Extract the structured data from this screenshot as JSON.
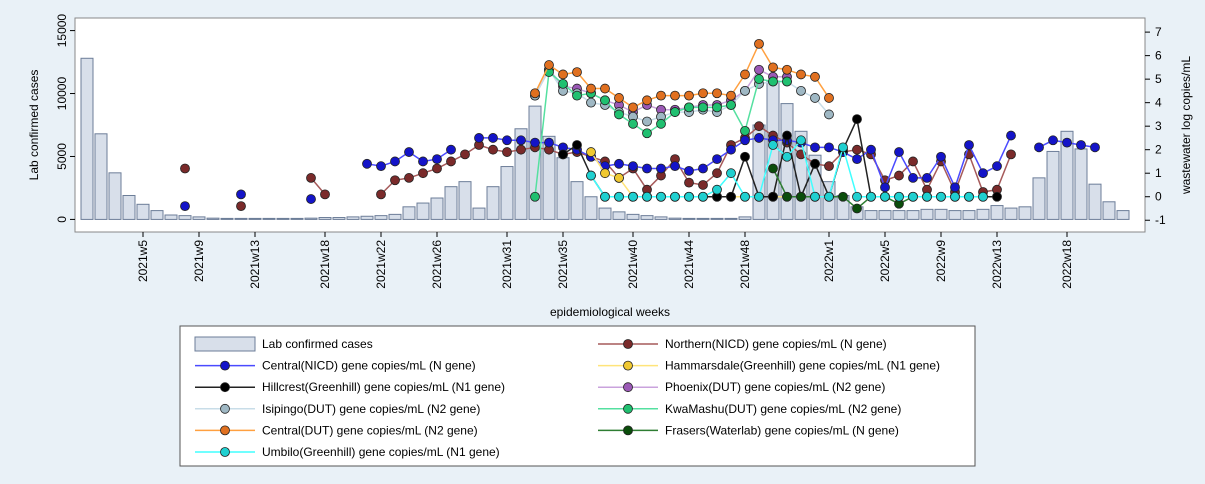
{
  "chart_data": {
    "type": "combo",
    "ylabel": "Lab confirmed cases",
    "y2label": "wastewater log copies/mL",
    "xlabel": "epidemiological weeks",
    "ylim": [
      -1000,
      16000
    ],
    "yticks": [
      0,
      5000,
      10000,
      15000
    ],
    "y2lim": [
      -1.5,
      7.6
    ],
    "y2ticks": [
      -1,
      0,
      1,
      2,
      3,
      4,
      5,
      6,
      7
    ],
    "categories": [
      null,
      null,
      null,
      null,
      "2021w5",
      null,
      null,
      null,
      "2021w9",
      null,
      null,
      null,
      "2021w13",
      null,
      null,
      null,
      null,
      "2021w18",
      null,
      null,
      null,
      "2021w22",
      null,
      null,
      null,
      "2021w26",
      null,
      null,
      null,
      null,
      "2021w31",
      null,
      null,
      null,
      "2021w35",
      null,
      null,
      null,
      null,
      "2021w40",
      null,
      null,
      null,
      "2021w44",
      null,
      null,
      null,
      "2021w48",
      null,
      null,
      null,
      null,
      null,
      "2022w1",
      null,
      null,
      null,
      "2022w5",
      null,
      null,
      null,
      "2022w9",
      null,
      null,
      null,
      "2022w13",
      null,
      null,
      null,
      null,
      "2022w18",
      null,
      null,
      null,
      null
    ],
    "series": [
      {
        "name": "Lab confirmed cases",
        "type": "bar",
        "color": "#d8dfea",
        "edge": "#6c7d98",
        "values": [
          12800,
          6800,
          3700,
          1900,
          1200,
          700,
          350,
          300,
          200,
          100,
          80,
          80,
          80,
          80,
          80,
          80,
          100,
          150,
          150,
          200,
          250,
          300,
          400,
          1000,
          1300,
          1700,
          2600,
          3000,
          900,
          2600,
          4200,
          7200,
          9000,
          6600,
          4900,
          3000,
          1800,
          900,
          600,
          400,
          300,
          200,
          100,
          80,
          80,
          80,
          80,
          200,
          7500,
          11000,
          9200,
          7000,
          5100,
          3000,
          1900,
          1000,
          700,
          700,
          700,
          700,
          800,
          800,
          700,
          700,
          800,
          1100,
          900,
          1000,
          3300,
          5400,
          7000,
          5600,
          2800,
          1400,
          700
        ]
      },
      {
        "name": "Northern(NICD) gene copies/mL (N gene)",
        "type": "line",
        "axis": "y2",
        "color": "#a65a5a",
        "marker_color": "#7a2a2a",
        "values": [
          null,
          null,
          null,
          null,
          null,
          null,
          null,
          1.2,
          null,
          null,
          null,
          -0.4,
          null,
          null,
          null,
          null,
          0.8,
          0.1,
          null,
          null,
          null,
          0.1,
          0.7,
          0.8,
          1.0,
          1.2,
          1.5,
          1.8,
          2.2,
          2.0,
          1.9,
          2.0,
          2.1,
          2.0,
          1.8,
          1.9,
          1.7,
          1.5,
          0.8,
          1.2,
          0.3,
          0.9,
          1.6,
          0.6,
          0.5,
          1.0,
          2.2,
          2.5,
          3.0,
          2.6,
          2.3,
          1.8,
          1.4,
          1.3,
          1.9,
          2.0,
          1.8,
          0.7,
          0.9,
          1.5,
          0.3,
          1.5,
          0.2,
          1.8,
          0.2,
          0.3,
          1.8,
          null,
          null,
          null,
          null,
          null,
          null,
          null,
          null
        ]
      },
      {
        "name": "Central(NICD) gene copies/mL (N gene)",
        "type": "line",
        "axis": "y2",
        "color": "#4a4aff",
        "marker_color": "#1414c8",
        "values": [
          null,
          null,
          null,
          null,
          null,
          null,
          null,
          -0.4,
          null,
          null,
          null,
          0.1,
          null,
          null,
          null,
          null,
          -0.1,
          null,
          null,
          null,
          1.4,
          1.3,
          1.5,
          1.9,
          1.5,
          1.6,
          2.0,
          null,
          2.5,
          2.5,
          2.4,
          2.4,
          2.3,
          2.3,
          2.1,
          2.0,
          1.7,
          1.3,
          1.4,
          1.3,
          1.2,
          1.2,
          1.3,
          1.1,
          1.2,
          1.6,
          2.0,
          2.4,
          2.5,
          2.4,
          2.4,
          2.3,
          2.1,
          2.1,
          1.9,
          1.6,
          2.0,
          0.4,
          1.9,
          0.8,
          0.8,
          1.7,
          0.4,
          2.2,
          1.0,
          1.3,
          2.6,
          null,
          2.1,
          2.4,
          2.3,
          2.2,
          2.1,
          null,
          null
        ]
      },
      {
        "name": "Hammarsdale(Greenhill) gene copies/mL (N1 gene)",
        "type": "line",
        "axis": "y2",
        "color": "#ffe47a",
        "marker_color": "#f0c830",
        "values": [
          null,
          null,
          null,
          null,
          null,
          null,
          null,
          null,
          null,
          null,
          null,
          null,
          null,
          null,
          null,
          null,
          null,
          null,
          null,
          null,
          null,
          null,
          null,
          null,
          null,
          null,
          null,
          null,
          null,
          null,
          null,
          null,
          null,
          null,
          null,
          null,
          1.9,
          1.0,
          0.8,
          0,
          0,
          0,
          0,
          0,
          0,
          0,
          0,
          0,
          0,
          0,
          0,
          0,
          0,
          null,
          null,
          null,
          null,
          null,
          null,
          null,
          null,
          null,
          null,
          null,
          null,
          null,
          null,
          null,
          null,
          null,
          null,
          null,
          null,
          null,
          null
        ]
      },
      {
        "name": "Hillcrest(Greenhill) gene copies/mL (N1 gene)",
        "type": "line",
        "axis": "y2",
        "color": "#222222",
        "marker_color": "#000000",
        "values": [
          null,
          null,
          null,
          null,
          null,
          null,
          null,
          null,
          null,
          null,
          null,
          null,
          null,
          null,
          null,
          null,
          null,
          null,
          null,
          null,
          null,
          null,
          null,
          null,
          null,
          null,
          null,
          null,
          null,
          null,
          null,
          null,
          null,
          null,
          1.8,
          2.2,
          0.9,
          0,
          0,
          0,
          0,
          0,
          0,
          0,
          0,
          0,
          0,
          1.7,
          0,
          0,
          2.6,
          0,
          1.4,
          0,
          2.0,
          3.3,
          0,
          0,
          0,
          0,
          0,
          0,
          0,
          0,
          0,
          0,
          null,
          null,
          null,
          null,
          null,
          null,
          null,
          null,
          null
        ]
      },
      {
        "name": "Phoenix(DUT) gene copies/mL (N2 gene)",
        "type": "line",
        "axis": "y2",
        "color": "#caa3dd",
        "marker_color": "#9b59b6",
        "values": [
          null,
          null,
          null,
          null,
          null,
          null,
          null,
          null,
          null,
          null,
          null,
          null,
          null,
          null,
          null,
          null,
          null,
          null,
          null,
          null,
          null,
          null,
          null,
          null,
          null,
          null,
          null,
          null,
          null,
          null,
          null,
          null,
          4.3,
          5.4,
          4.7,
          4.6,
          4.4,
          4.1,
          3.9,
          3.6,
          3.9,
          3.7,
          3.7,
          3.8,
          3.9,
          3.9,
          4.1,
          4.5,
          5.4,
          5.1,
          5.1,
          null,
          null,
          null,
          null,
          null,
          null,
          null,
          null,
          null,
          null,
          null,
          null,
          null,
          null,
          null,
          null,
          null,
          null,
          null,
          null,
          null,
          null,
          null,
          null
        ]
      },
      {
        "name": "Isipingo(DUT) gene copies/mL (N2 gene)",
        "type": "line",
        "axis": "y2",
        "color": "#c8dde8",
        "marker_color": "#9fb8c4",
        "values": [
          null,
          null,
          null,
          null,
          null,
          null,
          null,
          null,
          null,
          null,
          null,
          null,
          null,
          null,
          null,
          null,
          null,
          null,
          null,
          null,
          null,
          null,
          null,
          null,
          null,
          null,
          null,
          null,
          null,
          null,
          null,
          null,
          4.3,
          5.4,
          4.5,
          4.4,
          4.0,
          3.9,
          3.6,
          3.4,
          3.2,
          3.4,
          3.6,
          3.6,
          3.7,
          3.6,
          3.9,
          4.5,
          4.8,
          4.9,
          4.9,
          4.5,
          4.2,
          3.5,
          null,
          null,
          null,
          null,
          null,
          null,
          null,
          null,
          null,
          null,
          null,
          null,
          null,
          null,
          null,
          null,
          null,
          null,
          null,
          null,
          null
        ]
      },
      {
        "name": "KwaMashu(DUT) gene copies/mL (N2 gene)",
        "type": "line",
        "axis": "y2",
        "color": "#55e0a0",
        "marker_color": "#20c070",
        "values": [
          null,
          null,
          null,
          null,
          null,
          null,
          null,
          null,
          null,
          null,
          null,
          null,
          null,
          null,
          null,
          null,
          null,
          null,
          null,
          null,
          null,
          null,
          null,
          null,
          null,
          null,
          null,
          null,
          null,
          null,
          null,
          null,
          0,
          5.3,
          4.8,
          4.3,
          4.4,
          4.1,
          3.5,
          3.1,
          2.7,
          3.1,
          3.6,
          3.8,
          3.8,
          3.8,
          3.9,
          2.8,
          5.0,
          4.9,
          4.9,
          null,
          null,
          null,
          null,
          null,
          null,
          null,
          null,
          null,
          null,
          null,
          null,
          null,
          null,
          null,
          null,
          null,
          null,
          null,
          null,
          null,
          null,
          null,
          null
        ]
      },
      {
        "name": "Central(DUT) gene copies/mL (N2 gene)",
        "type": "line",
        "axis": "y2",
        "color": "#ffa040",
        "marker_color": "#e07020",
        "values": [
          null,
          null,
          null,
          null,
          null,
          null,
          null,
          null,
          null,
          null,
          null,
          null,
          null,
          null,
          null,
          null,
          null,
          null,
          null,
          null,
          null,
          null,
          null,
          null,
          null,
          null,
          null,
          null,
          null,
          null,
          null,
          null,
          4.4,
          5.6,
          5.2,
          5.3,
          4.6,
          4.6,
          4.2,
          3.8,
          4.1,
          4.3,
          4.3,
          4.3,
          4.4,
          4.4,
          4.3,
          5.2,
          6.5,
          5.5,
          5.4,
          5.2,
          5.1,
          4.2,
          null,
          null,
          null,
          null,
          null,
          null,
          null,
          null,
          null,
          null,
          null,
          null,
          null,
          null,
          null,
          null,
          null,
          null,
          null,
          null,
          null
        ]
      },
      {
        "name": "Frasers(Waterlab) gene copies/mL (N gene)",
        "type": "line",
        "axis": "y2",
        "color": "#2e7d32",
        "marker_color": "#0b4d0b",
        "values": [
          null,
          null,
          null,
          null,
          null,
          null,
          null,
          null,
          null,
          null,
          null,
          null,
          null,
          null,
          null,
          null,
          null,
          null,
          null,
          null,
          null,
          null,
          null,
          null,
          null,
          null,
          null,
          null,
          null,
          null,
          null,
          null,
          null,
          null,
          null,
          null,
          null,
          null,
          null,
          null,
          null,
          null,
          null,
          null,
          null,
          null,
          null,
          null,
          null,
          1.2,
          0,
          0,
          0,
          0,
          0,
          -0.5,
          0,
          0,
          -0.3,
          0,
          0,
          0,
          0,
          0,
          null,
          null,
          null,
          null,
          null,
          null,
          null,
          null,
          null,
          null,
          null
        ]
      },
      {
        "name": "Umbilo(Greenhill) gene copies/mL (N1 gene)",
        "type": "line",
        "axis": "y2",
        "color": "#40ffff",
        "marker_color": "#20d0d0",
        "values": [
          null,
          null,
          null,
          null,
          null,
          null,
          null,
          null,
          null,
          null,
          null,
          null,
          null,
          null,
          null,
          null,
          null,
          null,
          null,
          null,
          null,
          null,
          null,
          null,
          null,
          null,
          null,
          null,
          null,
          null,
          null,
          null,
          null,
          null,
          null,
          null,
          0.9,
          0,
          0,
          0,
          0,
          0,
          0,
          0,
          0,
          0.3,
          1.0,
          0,
          0,
          2.2,
          1.7,
          2.4,
          0,
          0,
          2.1,
          0,
          0,
          0,
          0,
          0,
          0,
          0,
          0,
          0,
          0,
          null,
          null,
          null,
          null,
          null,
          null,
          null,
          null,
          null,
          null
        ]
      }
    ]
  }
}
